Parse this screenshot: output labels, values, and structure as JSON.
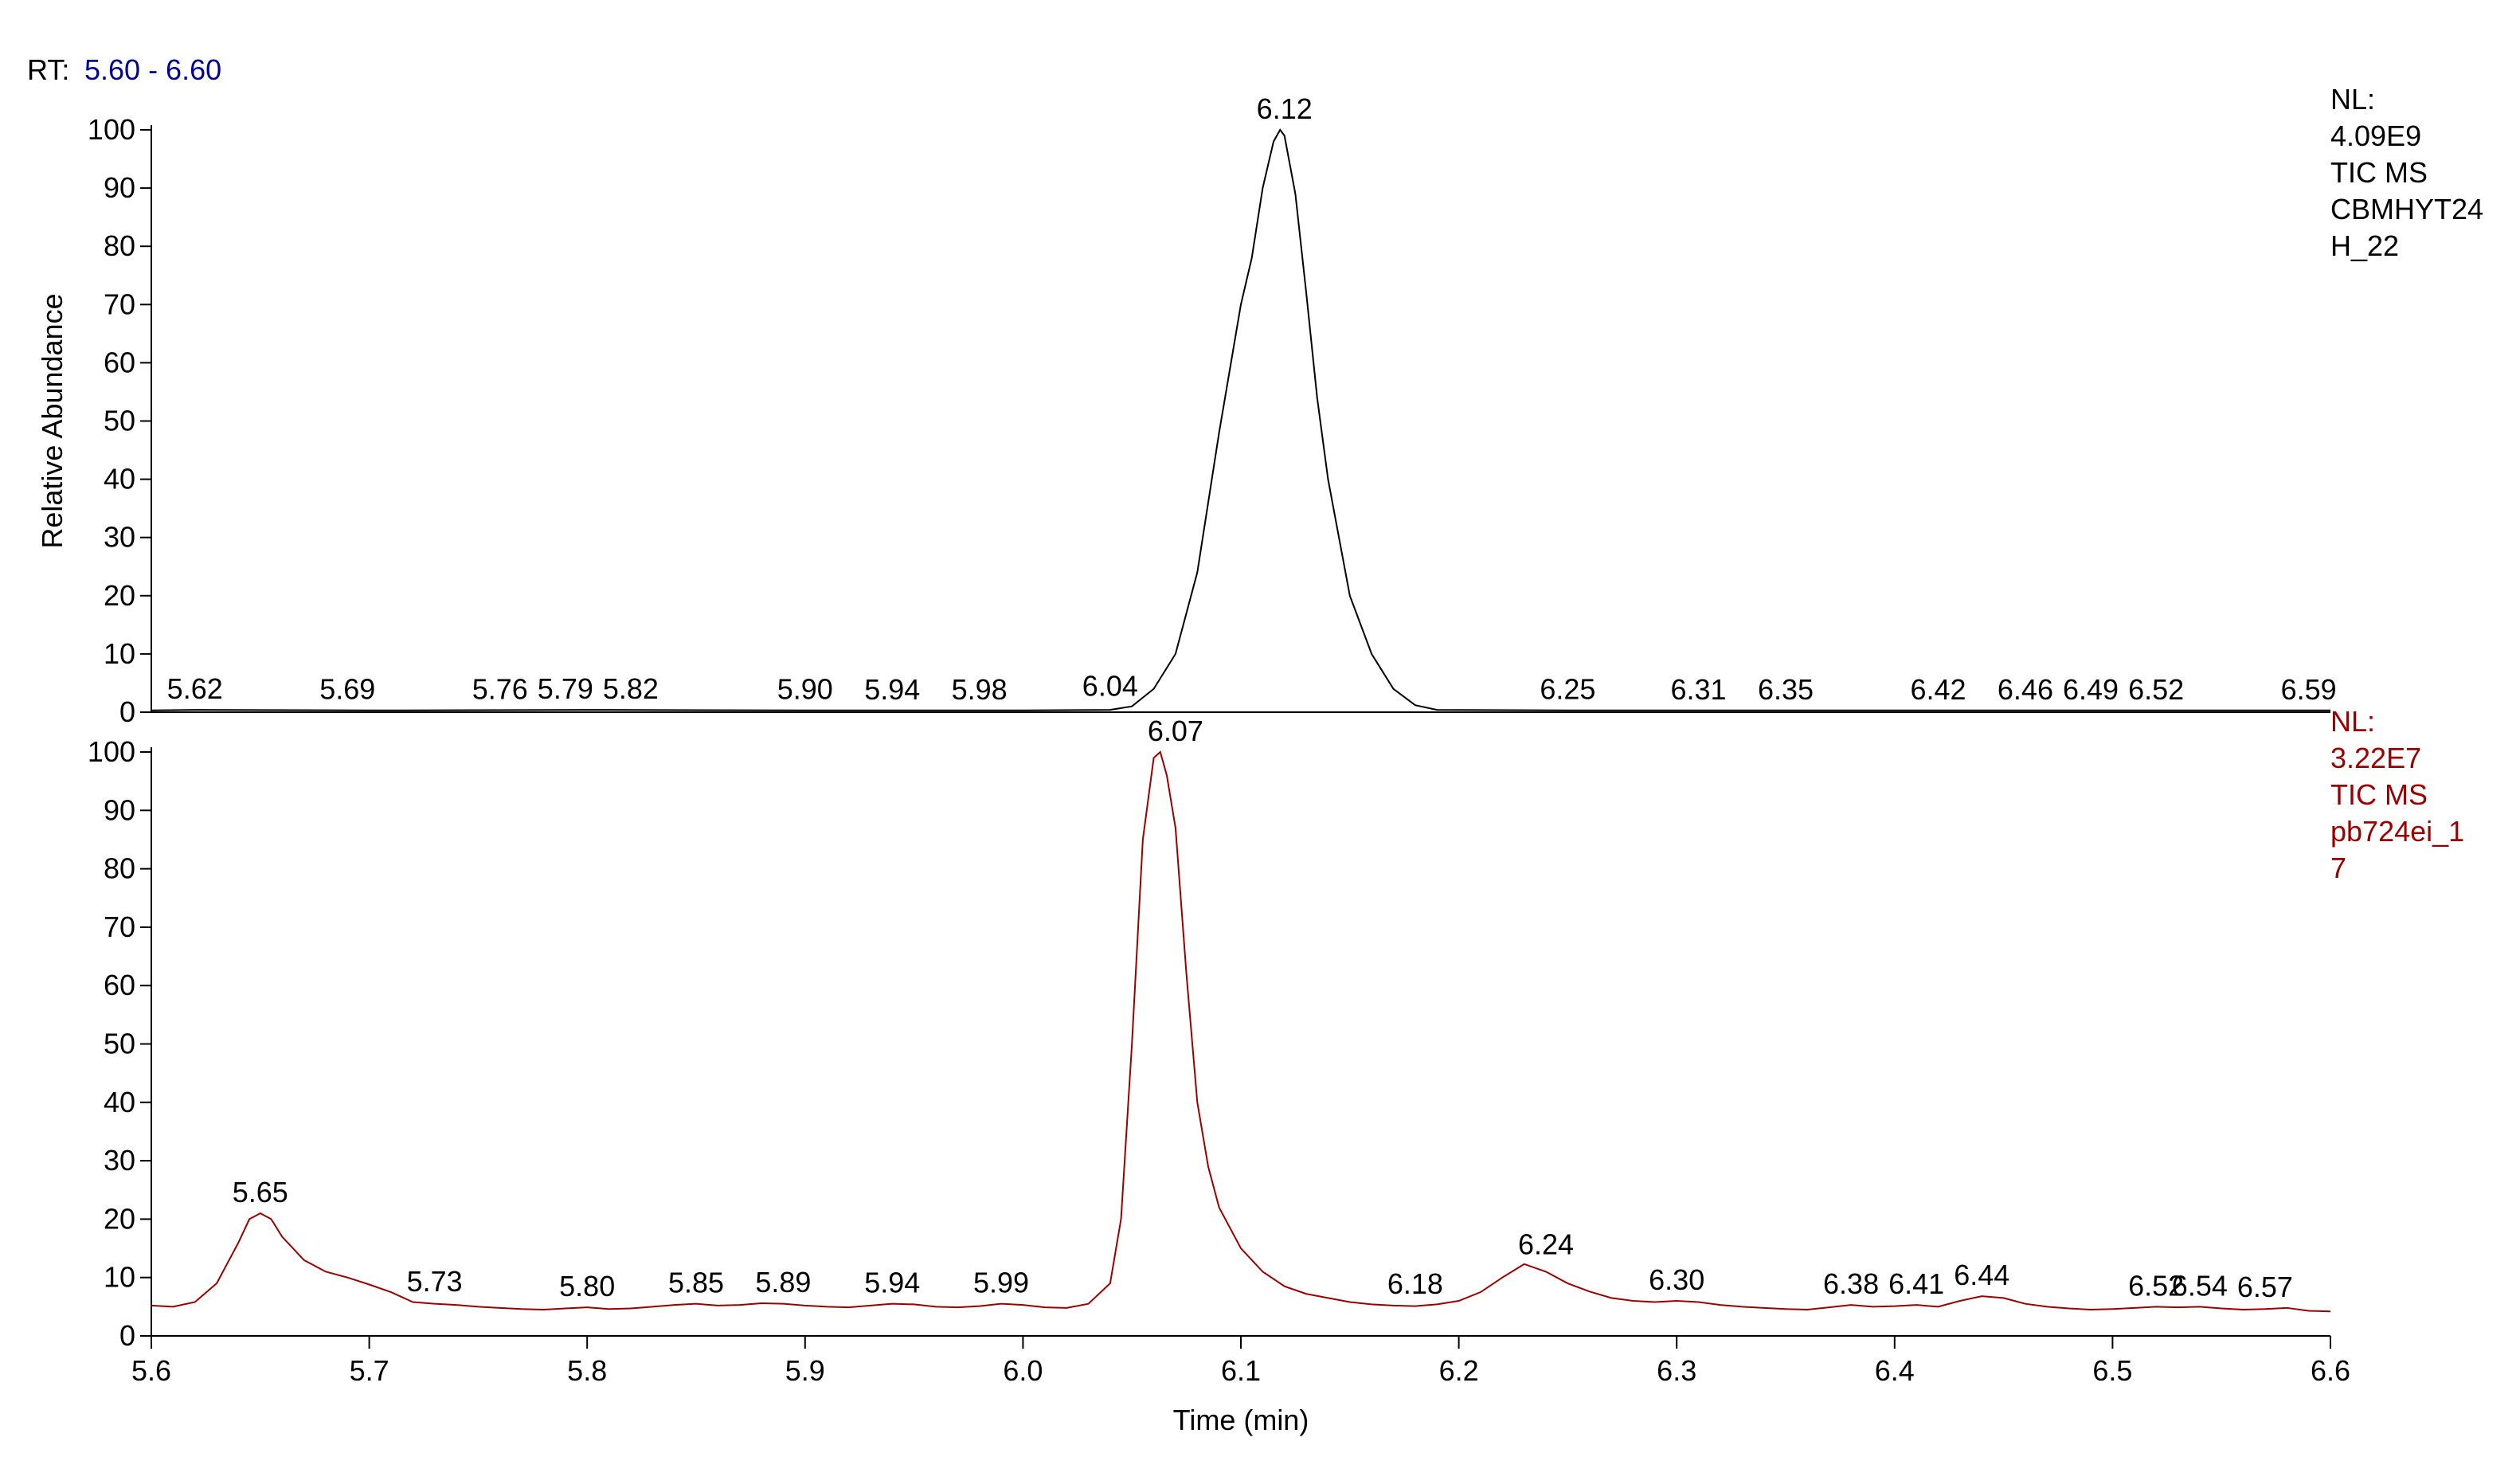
{
  "rt_label": "RT:",
  "rt_range": "5.60 - 6.60",
  "chart_data": [
    {
      "type": "line",
      "ylabel": "Relative Abundance",
      "color": "#000000",
      "info_lines": [
        "NL:",
        "4.09E9",
        "TIC  MS",
        "CBMHYT24",
        "H_22"
      ],
      "xlim": [
        5.6,
        6.6
      ],
      "ylim": [
        0,
        100
      ],
      "yticks": [
        0,
        10,
        20,
        30,
        40,
        50,
        60,
        70,
        80,
        90,
        100
      ],
      "x": [
        5.6,
        5.62,
        5.7,
        5.8,
        5.9,
        6.0,
        6.04,
        6.05,
        6.06,
        6.07,
        6.08,
        6.09,
        6.095,
        6.1,
        6.105,
        6.11,
        6.115,
        6.118,
        6.12,
        6.125,
        6.13,
        6.135,
        6.14,
        6.145,
        6.15,
        6.16,
        6.17,
        6.18,
        6.19,
        6.25,
        6.3,
        6.4,
        6.5,
        6.6
      ],
      "values": [
        0.3,
        0.4,
        0.3,
        0.4,
        0.3,
        0.3,
        0.4,
        1.0,
        4,
        10,
        24,
        48,
        59,
        70,
        78,
        90,
        98,
        100,
        99,
        89,
        72,
        54,
        40,
        30,
        20,
        10,
        4,
        1.2,
        0.4,
        0.3,
        0.3,
        0.3,
        0.3,
        0.3
      ],
      "peak_labels": [
        "5.62",
        "5.69",
        "5.76",
        "5.79",
        "5.82",
        "5.90",
        "5.94",
        "5.98",
        "6.04",
        "6.12",
        "6.25",
        "6.31",
        "6.35",
        "6.42",
        "6.46",
        "6.49",
        "6.52",
        "6.59"
      ]
    },
    {
      "type": "line",
      "xlabel": "Time (min)",
      "color": "#990000",
      "info_lines": [
        "NL:",
        "3.22E7",
        "TIC  MS",
        "pb724ei_1",
        "7"
      ],
      "xlim": [
        5.6,
        6.6
      ],
      "ylim": [
        0,
        100
      ],
      "yticks": [
        0,
        10,
        20,
        30,
        40,
        50,
        60,
        70,
        80,
        90,
        100
      ],
      "xticks": [
        5.6,
        5.7,
        5.8,
        5.9,
        {
          "value": 6,
          "label": "6.0"
        },
        6.1,
        6.2,
        6.3,
        6.4,
        6.5,
        6.6
      ],
      "x": [
        5.6,
        5.61,
        5.62,
        5.63,
        5.64,
        5.645,
        5.65,
        5.655,
        5.66,
        5.67,
        5.68,
        5.69,
        5.7,
        5.71,
        5.72,
        5.73,
        5.74,
        5.75,
        5.76,
        5.77,
        5.78,
        5.79,
        5.8,
        5.81,
        5.82,
        5.83,
        5.84,
        5.85,
        5.86,
        5.87,
        5.88,
        5.89,
        5.9,
        5.91,
        5.92,
        5.93,
        5.94,
        5.95,
        5.96,
        5.97,
        5.98,
        5.99,
        6.0,
        6.01,
        6.02,
        6.03,
        6.04,
        6.045,
        6.05,
        6.055,
        6.06,
        6.063,
        6.066,
        6.07,
        6.075,
        6.08,
        6.085,
        6.09,
        6.1,
        6.11,
        6.12,
        6.13,
        6.14,
        6.15,
        6.16,
        6.17,
        6.18,
        6.19,
        6.2,
        6.21,
        6.22,
        6.23,
        6.24,
        6.25,
        6.26,
        6.27,
        6.28,
        6.29,
        6.3,
        6.31,
        6.32,
        6.33,
        6.34,
        6.35,
        6.36,
        6.37,
        6.38,
        6.39,
        6.4,
        6.41,
        6.42,
        6.43,
        6.44,
        6.45,
        6.46,
        6.47,
        6.48,
        6.49,
        6.5,
        6.51,
        6.52,
        6.53,
        6.54,
        6.55,
        6.56,
        6.57,
        6.58,
        6.59,
        6.6
      ],
      "values": [
        5.2,
        5.0,
        5.8,
        9,
        16,
        20,
        21,
        20,
        17,
        13,
        11,
        10,
        8.8,
        7.5,
        5.8,
        5.5,
        5.3,
        5.0,
        4.8,
        4.6,
        4.5,
        4.7,
        4.9,
        4.6,
        4.7,
        5.0,
        5.3,
        5.5,
        5.2,
        5.3,
        5.6,
        5.5,
        5.2,
        5.0,
        4.9,
        5.2,
        5.5,
        5.4,
        5.0,
        4.9,
        5.1,
        5.5,
        5.3,
        4.9,
        4.8,
        5.5,
        9,
        20,
        50,
        85,
        99,
        100,
        96,
        87,
        62,
        40,
        29,
        22,
        15,
        11,
        8.5,
        7.2,
        6.5,
        5.8,
        5.4,
        5.2,
        5.1,
        5.4,
        6.0,
        7.5,
        10,
        12.3,
        11,
        9,
        7.6,
        6.5,
        6.0,
        5.8,
        6.0,
        5.8,
        5.3,
        5.0,
        4.8,
        4.6,
        4.5,
        4.9,
        5.3,
        5.0,
        5.1,
        5.3,
        5.0,
        6.0,
        6.8,
        6.5,
        5.5,
        5.0,
        4.7,
        4.5,
        4.6,
        4.8,
        5.0,
        4.9,
        5.0,
        4.7,
        4.5,
        4.6,
        4.8,
        4.3,
        4.2
      ],
      "peak_labels": [
        "5.65",
        "5.73",
        "5.80",
        "5.85",
        "5.89",
        "5.94",
        "5.99",
        "6.07",
        "6.18",
        "6.24",
        "6.30",
        "6.38",
        "6.41",
        "6.44",
        "6.52",
        "6.54",
        "6.57"
      ]
    }
  ]
}
